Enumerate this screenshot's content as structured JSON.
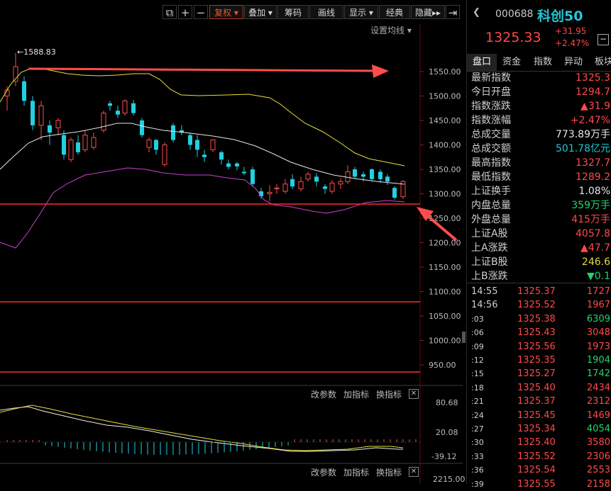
{
  "toolbar": {
    "buttons": [
      {
        "label": "复权",
        "dropdown": true,
        "active": true
      },
      {
        "label": "叠加",
        "dropdown": true
      },
      {
        "label": "筹码"
      },
      {
        "label": "画线"
      },
      {
        "label": "显示",
        "dropdown": true
      },
      {
        "label": "经典"
      },
      {
        "label": "隐藏"
      }
    ],
    "icons": [
      "copy-icon",
      "zoom-in-icon",
      "zoom-out-icon",
      "fast-forward-icon",
      "expand-icon"
    ]
  },
  "main_chart": {
    "set_ma_label": "设置均线",
    "max_marker": "1588.83",
    "y_ticks": [
      "1550.00",
      "1500.00",
      "1450.00",
      "1400.00",
      "1350.00",
      "1300.00",
      "1250.00",
      "1200.00",
      "1150.00",
      "1100.00",
      "1050.00",
      "1000.00",
      "950.00"
    ],
    "up_color": "#ff4d4d",
    "down_color": "#22d0e0"
  },
  "sub_panel_1": {
    "buttons": [
      "改参数",
      "加指标",
      "换指标"
    ],
    "y_ticks": [
      "80.68",
      "20.08",
      "-39.12"
    ]
  },
  "sub_panel_2": {
    "buttons": [
      "改参数",
      "加指标",
      "换指标"
    ],
    "y_ticks": [
      "2215.00"
    ]
  },
  "quote": {
    "code": "000688",
    "name": "科创50",
    "price": "1325.33",
    "change": "+31.95",
    "change_pct": "+2.47%"
  },
  "tabs": [
    "盘口",
    "资金",
    "指数",
    "异动",
    "板块"
  ],
  "stats": [
    {
      "label": "最新指数",
      "value": "1325.3",
      "color": "red"
    },
    {
      "label": "今日开盘",
      "value": "1294.7",
      "color": "red"
    },
    {
      "label": "指数涨跌",
      "value": "▲31.9",
      "color": "red"
    },
    {
      "label": "指数涨幅",
      "value": "+2.47%",
      "color": "red"
    },
    {
      "label": "总成交量",
      "value": "773.89万手",
      "color": "white"
    },
    {
      "label": "总成交额",
      "value": "501.78亿元",
      "color": "cyan"
    },
    {
      "label": "最高指数",
      "value": "1327.7",
      "color": "red"
    },
    {
      "label": "最低指数",
      "value": "1289.2",
      "color": "red"
    },
    {
      "label": "上证换手",
      "value": "1.08%",
      "color": "white"
    },
    {
      "label": "内盘总量",
      "value": "359万手",
      "color": "green"
    },
    {
      "label": "外盘总量",
      "value": "415万手",
      "color": "red"
    },
    {
      "label": "上证A股",
      "value": "4057.8",
      "color": "red"
    },
    {
      "label": "上A涨跌",
      "value": "▲47.7",
      "color": "red"
    },
    {
      "label": "上证B股",
      "value": "246.6",
      "color": "yellow"
    },
    {
      "label": "上B涨跌",
      "value": "▼0.1",
      "color": "green"
    }
  ],
  "ticks": [
    {
      "time": "14:55",
      "price": "1325.37",
      "vol": "1727",
      "vol_color": "red"
    },
    {
      "time": "14:56",
      "price": "1325.52",
      "vol": "1967",
      "vol_color": "red"
    },
    {
      "time": ":03",
      "price": "1325.38",
      "vol": "6309",
      "vol_color": "green"
    },
    {
      "time": ":06",
      "price": "1325.43",
      "vol": "3048",
      "vol_color": "red"
    },
    {
      "time": ":09",
      "price": "1325.56",
      "vol": "1973",
      "vol_color": "red"
    },
    {
      "time": ":12",
      "price": "1325.35",
      "vol": "1904",
      "vol_color": "green"
    },
    {
      "time": ":15",
      "price": "1325.27",
      "vol": "1742",
      "vol_color": "green"
    },
    {
      "time": ":18",
      "price": "1325.40",
      "vol": "2434",
      "vol_color": "red"
    },
    {
      "time": ":21",
      "price": "1325.37",
      "vol": "2312",
      "vol_color": "red"
    },
    {
      "time": ":24",
      "price": "1325.45",
      "vol": "1469",
      "vol_color": "red"
    },
    {
      "time": ":27",
      "price": "1325.34",
      "vol": "4054",
      "vol_color": "green"
    },
    {
      "time": ":30",
      "price": "1325.40",
      "vol": "3580",
      "vol_color": "red"
    },
    {
      "time": ":33",
      "price": "1325.52",
      "vol": "2306",
      "vol_color": "red"
    },
    {
      "time": ":36",
      "price": "1325.54",
      "vol": "2553",
      "vol_color": "red"
    },
    {
      "time": ":39",
      "price": "1325.55",
      "vol": "2158",
      "vol_color": "red"
    }
  ]
}
